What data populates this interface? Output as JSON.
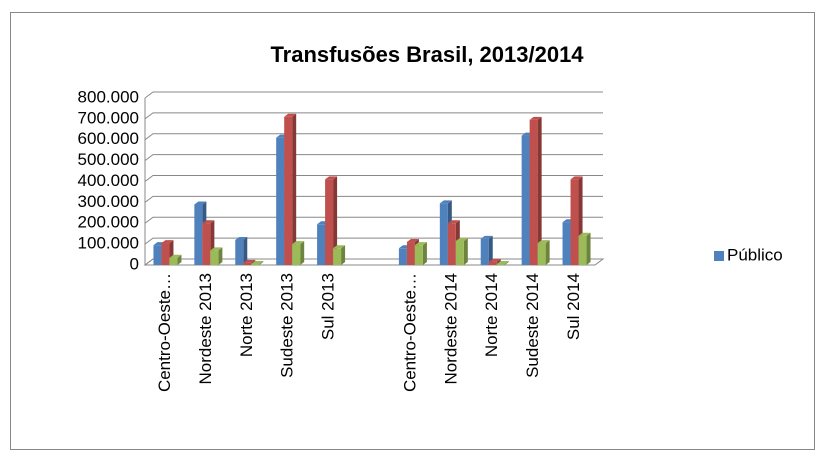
{
  "chart_data": {
    "type": "bar",
    "title": "Transfusões Brasil, 2013/2014",
    "categories": [
      "Centro-Oeste…",
      "Nordeste 2013",
      "Norte 2013",
      "Sudeste 2013",
      "Sul 2013",
      null,
      "Centro-Oeste…",
      "Nordeste 2014",
      "Norte 2014",
      "Sudeste 2014",
      "Sul 2014"
    ],
    "series": [
      {
        "name": "Público",
        "color": "#4f81bd",
        "values": [
          95000,
          290000,
          120000,
          610000,
          195000,
          null,
          80000,
          295000,
          125000,
          620000,
          205000
        ]
      },
      {
        "color": "#c0504d",
        "values": [
          105000,
          200000,
          10000,
          710000,
          410000,
          null,
          110000,
          200000,
          15000,
          695000,
          410000
        ]
      },
      {
        "color": "#9bbb59",
        "values": [
          35000,
          70000,
          5000,
          100000,
          80000,
          null,
          95000,
          115000,
          5000,
          105000,
          140000
        ]
      }
    ],
    "ylim": [
      0,
      800000
    ],
    "yticks": [
      0,
      {
        "value": 100000,
        "label": "100.000"
      },
      {
        "value": 200000,
        "label": "200.000"
      },
      {
        "value": 300000,
        "label": "300.000"
      },
      {
        "value": 400000,
        "label": "400.000"
      },
      {
        "value": 500000,
        "label": "500.000"
      },
      {
        "value": 600000,
        "label": "600.000"
      },
      {
        "value": 700000,
        "label": "700.000"
      },
      {
        "value": 800000,
        "label": "800.000"
      }
    ],
    "grid": true,
    "legend": "right"
  }
}
